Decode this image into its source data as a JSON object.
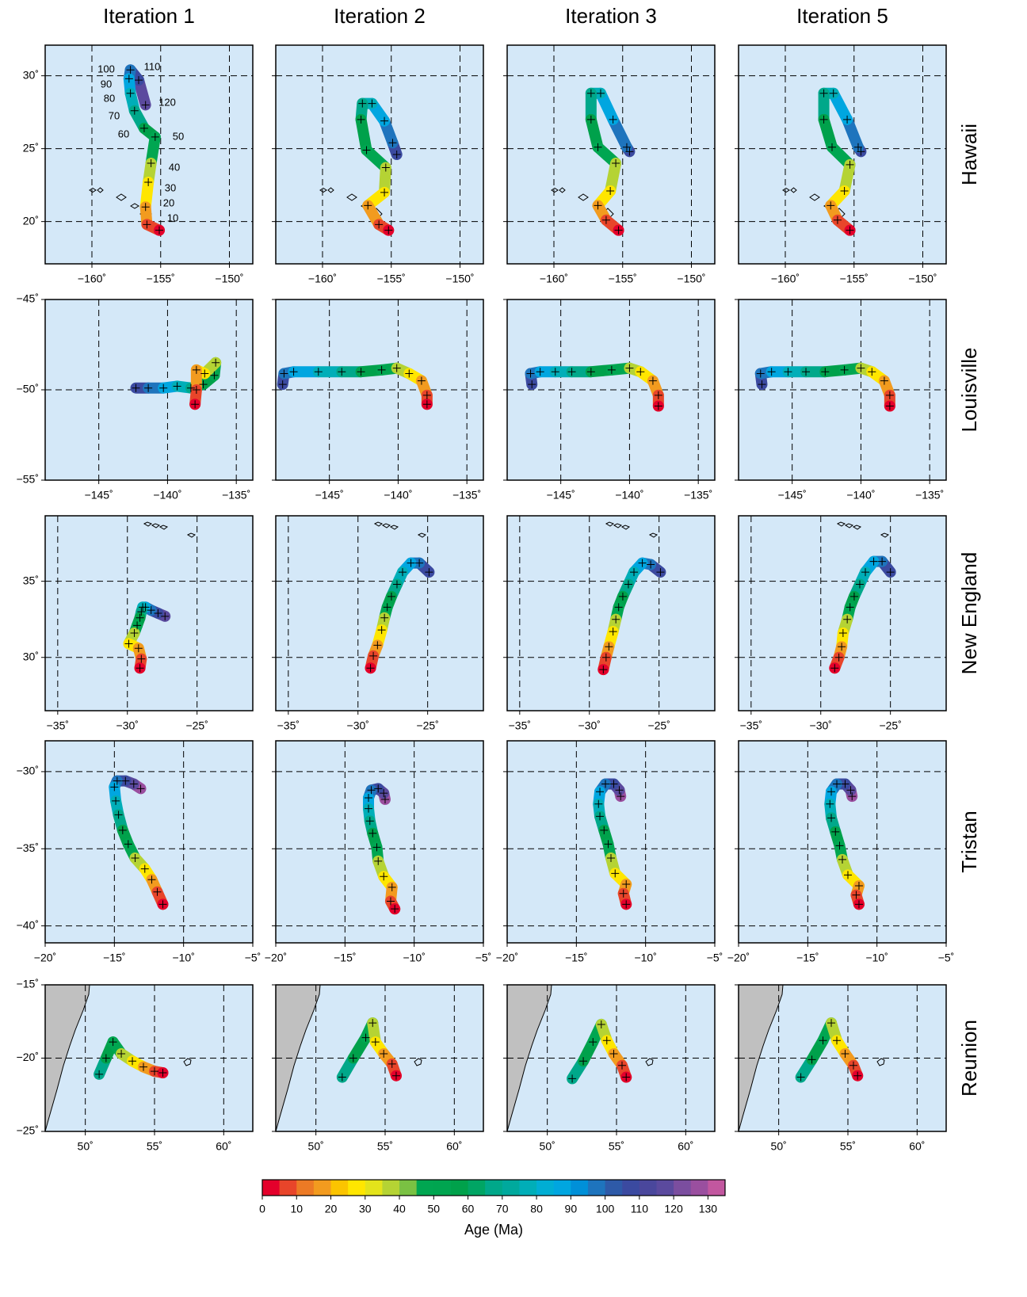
{
  "columns": [
    "Iteration 1",
    "Iteration 2",
    "Iteration 3",
    "Iteration 5"
  ],
  "rows": [
    {
      "name": "Hawaii",
      "xlim": [
        -163.4,
        -148.3
      ],
      "ylim": [
        17.1,
        32.1
      ],
      "xticks": [
        {
          "value": -160,
          "label": "−160˚"
        },
        {
          "value": -155,
          "label": "−155˚"
        },
        {
          "value": -150,
          "label": "−150˚"
        }
      ],
      "yticks": [
        {
          "value": 20,
          "label": "20˚"
        },
        {
          "value": 25,
          "label": "25˚"
        },
        {
          "value": 30,
          "label": "30˚"
        }
      ],
      "age_labels": [
        10,
        20,
        30,
        40,
        50,
        60,
        70,
        80,
        90,
        100,
        110,
        120
      ],
      "tracks": [
        {
          "ages": [
            0,
            10,
            20,
            30,
            40,
            50,
            60,
            70,
            80,
            90,
            100,
            110,
            120
          ],
          "lon": [
            -155.1,
            -156.0,
            -156.1,
            -155.9,
            -155.7,
            -155.4,
            -156.2,
            -156.9,
            -157.2,
            -157.3,
            -157.2,
            -156.6,
            -156.1
          ],
          "lat": [
            19.4,
            19.8,
            21.0,
            22.7,
            24.0,
            25.8,
            26.4,
            27.6,
            28.8,
            29.8,
            30.4,
            29.7,
            28.0
          ]
        },
        {
          "ages": [
            0,
            10,
            20,
            30,
            40,
            50,
            60,
            70,
            80,
            90,
            100,
            110
          ],
          "lon": [
            -155.2,
            -155.9,
            -156.7,
            -155.5,
            -155.4,
            -156.8,
            -157.2,
            -157.1,
            -156.4,
            -155.5,
            -154.9,
            -154.6
          ],
          "lat": [
            19.4,
            19.8,
            21.1,
            22.0,
            23.7,
            24.9,
            27.0,
            28.1,
            28.1,
            26.9,
            25.4,
            24.6
          ]
        },
        {
          "ages": [
            0,
            10,
            20,
            30,
            40,
            50,
            60,
            70,
            80,
            90,
            100,
            110
          ],
          "lon": [
            -155.3,
            -156.2,
            -156.8,
            -155.9,
            -155.5,
            -156.8,
            -157.3,
            -157.3,
            -156.6,
            -155.7,
            -154.7,
            -154.5
          ],
          "lat": [
            19.4,
            20.1,
            21.1,
            22.1,
            24.0,
            25.1,
            27.0,
            28.8,
            28.8,
            27.0,
            25.1,
            24.8
          ]
        },
        {
          "ages": [
            0,
            10,
            20,
            30,
            40,
            50,
            60,
            70,
            80,
            90,
            100,
            110
          ],
          "lon": [
            -155.3,
            -156.2,
            -156.7,
            -155.7,
            -155.3,
            -156.6,
            -157.2,
            -157.2,
            -156.5,
            -155.5,
            -154.7,
            -154.5
          ],
          "lat": [
            19.4,
            20.1,
            21.1,
            22.1,
            23.9,
            25.1,
            27.0,
            28.8,
            28.8,
            27.0,
            25.1,
            24.8
          ]
        }
      ]
    },
    {
      "name": "Louisville",
      "xlim": [
        -148.9,
        -133.8
      ],
      "ylim": [
        -55,
        -45
      ],
      "xticks": [
        {
          "value": -145,
          "label": "−145˚"
        },
        {
          "value": -140,
          "label": "−140˚"
        },
        {
          "value": -135,
          "label": "−135˚"
        }
      ],
      "yticks": [
        {
          "value": -55,
          "label": "−55˚"
        },
        {
          "value": -50,
          "label": "−50˚"
        },
        {
          "value": -45,
          "label": "−45˚"
        }
      ],
      "tracks": [
        {
          "ages": [
            0,
            10,
            20,
            30,
            40,
            50,
            60,
            70,
            80,
            90,
            100,
            110
          ],
          "lon": [
            -138.0,
            -137.9,
            -137.9,
            -137.3,
            -136.5,
            -136.6,
            -137.4,
            -138.3,
            -139.3,
            -140.3,
            -141.4,
            -142.3
          ],
          "lat": [
            -50.8,
            -50.0,
            -48.9,
            -49.1,
            -48.5,
            -49.2,
            -49.7,
            -49.9,
            -49.8,
            -49.9,
            -49.9,
            -49.9
          ]
        },
        {
          "ages": [
            0,
            10,
            20,
            30,
            40,
            50,
            60,
            70,
            80,
            90,
            100,
            110
          ],
          "lon": [
            -137.9,
            -137.9,
            -138.3,
            -139.2,
            -140.1,
            -141.2,
            -142.7,
            -144.1,
            -145.8,
            -147.6,
            -148.3,
            -148.4
          ],
          "lat": [
            -50.8,
            -50.3,
            -49.5,
            -49.1,
            -48.8,
            -48.9,
            -49.0,
            -49.0,
            -49.0,
            -49.0,
            -49.1,
            -49.7
          ]
        },
        {
          "ages": [
            0,
            10,
            20,
            30,
            40,
            50,
            60,
            70,
            80,
            90,
            100,
            110
          ],
          "lon": [
            -137.9,
            -137.9,
            -138.3,
            -139.2,
            -140.0,
            -141.3,
            -142.8,
            -144.2,
            -145.4,
            -146.5,
            -147.2,
            -147.1
          ],
          "lat": [
            -50.9,
            -50.3,
            -49.5,
            -49.0,
            -48.8,
            -48.9,
            -49.0,
            -49.0,
            -49.0,
            -49.0,
            -49.1,
            -49.7
          ]
        },
        {
          "ages": [
            0,
            10,
            20,
            30,
            40,
            50,
            60,
            70,
            80,
            90,
            100,
            110
          ],
          "lon": [
            -137.9,
            -137.9,
            -138.3,
            -139.2,
            -140.0,
            -141.2,
            -142.6,
            -144.0,
            -145.3,
            -146.5,
            -147.3,
            -147.2
          ],
          "lat": [
            -50.9,
            -50.3,
            -49.5,
            -49.0,
            -48.8,
            -48.9,
            -49.0,
            -49.0,
            -49.0,
            -49.0,
            -49.1,
            -49.7
          ]
        }
      ]
    },
    {
      "name": "New England",
      "xlim": [
        -35.9,
        -21.0
      ],
      "ylim": [
        26.5,
        39.3
      ],
      "xticks": [
        {
          "value": -35,
          "label": "−35˚"
        },
        {
          "value": -30,
          "label": "−30˚"
        },
        {
          "value": -25,
          "label": "−25˚"
        }
      ],
      "yticks": [
        {
          "value": 30,
          "label": "30˚"
        },
        {
          "value": 35,
          "label": "35˚"
        }
      ],
      "tracks": [
        {
          "ages": [
            0,
            10,
            20,
            30,
            40,
            50,
            60,
            70,
            80,
            90,
            100,
            110,
            120
          ],
          "lon": [
            -29.1,
            -29.0,
            -29.2,
            -29.9,
            -29.5,
            -29.3,
            -29.1,
            -29.0,
            -28.9,
            -28.7,
            -28.3,
            -27.8,
            -27.3
          ],
          "lat": [
            29.3,
            29.9,
            30.6,
            30.9,
            31.6,
            32.1,
            32.6,
            33.0,
            33.3,
            33.3,
            33.1,
            32.9,
            32.7
          ]
        },
        {
          "ages": [
            0,
            10,
            20,
            30,
            40,
            50,
            60,
            70,
            80,
            90,
            100,
            110
          ],
          "lon": [
            -29.1,
            -28.9,
            -28.6,
            -28.3,
            -28.1,
            -27.9,
            -27.6,
            -27.2,
            -26.8,
            -26.2,
            -25.6,
            -24.9
          ],
          "lat": [
            29.3,
            30.1,
            30.8,
            31.8,
            32.6,
            33.3,
            34.0,
            34.8,
            35.6,
            36.2,
            36.2,
            35.6
          ]
        },
        {
          "ages": [
            0,
            10,
            20,
            30,
            40,
            50,
            60,
            70,
            80,
            90,
            100,
            110
          ],
          "lon": [
            -29.0,
            -28.8,
            -28.6,
            -28.3,
            -28.1,
            -27.9,
            -27.6,
            -27.2,
            -26.8,
            -26.2,
            -25.6,
            -24.9
          ],
          "lat": [
            29.2,
            30.0,
            30.7,
            31.7,
            32.5,
            33.3,
            34.0,
            34.8,
            35.6,
            36.2,
            36.1,
            35.6
          ]
        },
        {
          "ages": [
            0,
            10,
            20,
            30,
            40,
            50,
            60,
            70,
            80,
            90,
            100,
            110
          ],
          "lon": [
            -29.0,
            -28.7,
            -28.5,
            -28.4,
            -28.1,
            -27.9,
            -27.6,
            -27.2,
            -26.8,
            -26.2,
            -25.6,
            -25.0
          ],
          "lat": [
            29.3,
            30.0,
            30.7,
            31.6,
            32.5,
            33.3,
            34.0,
            34.8,
            35.6,
            36.3,
            36.3,
            35.6
          ]
        }
      ]
    },
    {
      "name": "Tristan",
      "xlim": [
        -20,
        -5
      ],
      "ylim": [
        -41.1,
        -28.0
      ],
      "xticks": [
        {
          "value": -20,
          "label": "−20˚"
        },
        {
          "value": -15,
          "label": "−15˚"
        },
        {
          "value": -10,
          "label": "−10˚"
        },
        {
          "value": -5,
          "label": "−5˚"
        }
      ],
      "yticks": [
        {
          "value": -40,
          "label": "−40˚"
        },
        {
          "value": -35,
          "label": "−35˚"
        },
        {
          "value": -30,
          "label": "−30˚"
        }
      ],
      "tracks": [
        {
          "ages": [
            0,
            10,
            20,
            30,
            40,
            50,
            60,
            70,
            80,
            90,
            100,
            110,
            120,
            130
          ],
          "lon": [
            -11.5,
            -11.9,
            -12.3,
            -12.8,
            -13.5,
            -14.0,
            -14.4,
            -14.7,
            -14.9,
            -15.0,
            -14.8,
            -14.2,
            -13.6,
            -13.1
          ],
          "lat": [
            -38.6,
            -37.8,
            -37.0,
            -36.3,
            -35.6,
            -34.7,
            -33.8,
            -32.8,
            -31.9,
            -31.0,
            -30.6,
            -30.6,
            -30.8,
            -31.1
          ]
        },
        {
          "ages": [
            0,
            10,
            20,
            30,
            40,
            50,
            60,
            70,
            80,
            90,
            100,
            110,
            120,
            130
          ],
          "lon": [
            -11.4,
            -11.7,
            -11.6,
            -12.2,
            -12.6,
            -12.7,
            -13.0,
            -13.2,
            -13.3,
            -13.3,
            -13.1,
            -12.6,
            -12.2,
            -12.1
          ],
          "lat": [
            -38.9,
            -38.4,
            -37.5,
            -36.8,
            -35.8,
            -34.9,
            -34.0,
            -33.2,
            -32.4,
            -31.7,
            -31.2,
            -31.1,
            -31.4,
            -31.8
          ]
        },
        {
          "ages": [
            0,
            10,
            20,
            30,
            40,
            50,
            60,
            70,
            80,
            90,
            100,
            110,
            120,
            130
          ],
          "lon": [
            -11.4,
            -11.6,
            -11.4,
            -12.2,
            -12.5,
            -12.7,
            -13.0,
            -13.3,
            -13.4,
            -13.3,
            -12.9,
            -12.3,
            -11.9,
            -11.8
          ],
          "lat": [
            -38.6,
            -37.9,
            -37.3,
            -36.6,
            -35.6,
            -34.7,
            -33.8,
            -32.9,
            -32.1,
            -31.3,
            -30.8,
            -30.8,
            -31.2,
            -31.6
          ]
        },
        {
          "ages": [
            0,
            10,
            20,
            30,
            40,
            50,
            60,
            70,
            80,
            90,
            100,
            110,
            120,
            130
          ],
          "lon": [
            -11.3,
            -11.5,
            -11.3,
            -12.1,
            -12.5,
            -12.7,
            -13.0,
            -13.3,
            -13.4,
            -13.3,
            -12.9,
            -12.3,
            -11.9,
            -11.8
          ],
          "lat": [
            -38.6,
            -38.0,
            -37.4,
            -36.7,
            -35.7,
            -34.8,
            -33.9,
            -33.0,
            -32.1,
            -31.3,
            -30.8,
            -30.8,
            -31.2,
            -31.6
          ]
        }
      ]
    },
    {
      "name": "Reunion",
      "xlim": [
        47.1,
        62.1
      ],
      "ylim": [
        -25,
        -15
      ],
      "xticks": [
        {
          "value": 50,
          "label": "50˚"
        },
        {
          "value": 55,
          "label": "55˚"
        },
        {
          "value": 60,
          "label": "60˚"
        }
      ],
      "yticks": [
        {
          "value": -25,
          "label": "−25˚"
        },
        {
          "value": -20,
          "label": "−20˚"
        },
        {
          "value": -15,
          "label": "−15˚"
        }
      ],
      "tracks": [
        {
          "ages": [
            0,
            10,
            20,
            30,
            40,
            50,
            60,
            70
          ],
          "lon": [
            55.6,
            55.0,
            54.2,
            53.4,
            52.6,
            52.0,
            51.5,
            51.0
          ],
          "lat": [
            -21.0,
            -20.9,
            -20.6,
            -20.2,
            -19.7,
            -18.9,
            -20.0,
            -21.1
          ]
        },
        {
          "ages": [
            0,
            10,
            20,
            30,
            40,
            50,
            60,
            70
          ],
          "lon": [
            55.8,
            55.5,
            54.9,
            54.3,
            54.1,
            53.6,
            52.7,
            51.9
          ],
          "lat": [
            -21.2,
            -20.4,
            -19.7,
            -18.9,
            -17.6,
            -18.6,
            -20.0,
            -21.3
          ]
        },
        {
          "ages": [
            0,
            10,
            20,
            30,
            40,
            50,
            60,
            70
          ],
          "lon": [
            55.7,
            55.4,
            54.8,
            54.3,
            53.9,
            53.3,
            52.6,
            51.8
          ],
          "lat": [
            -21.3,
            -20.5,
            -19.7,
            -18.8,
            -17.7,
            -18.9,
            -20.2,
            -21.4
          ]
        },
        {
          "ages": [
            0,
            10,
            20,
            30,
            40,
            50,
            60,
            70
          ],
          "lon": [
            55.7,
            55.4,
            54.8,
            54.2,
            53.8,
            53.2,
            52.4,
            51.6
          ],
          "lat": [
            -21.2,
            -20.5,
            -19.7,
            -18.8,
            -17.6,
            -18.8,
            -20.1,
            -21.3
          ]
        }
      ]
    }
  ],
  "colorbar": {
    "label": "Age (Ma)",
    "lim": [
      0,
      135
    ],
    "ticks": [
      0,
      10,
      20,
      30,
      40,
      50,
      60,
      70,
      80,
      90,
      100,
      110,
      120,
      130
    ],
    "colors": [
      "#e4002b",
      "#e8452a",
      "#ec7a25",
      "#f29b1f",
      "#fbc400",
      "#ffe600",
      "#e3e31b",
      "#b5d334",
      "#7ac143",
      "#00a651",
      "#00a550",
      "#00a14b",
      "#00a564",
      "#00a88a",
      "#00a99d",
      "#00aeb8",
      "#00aed4",
      "#00a6e0",
      "#0090d8",
      "#1e74bd",
      "#2e5aa8",
      "#3b4aa0",
      "#4a479c",
      "#5b4a9e",
      "#7b4e9f",
      "#9a4f9f",
      "#c2579f"
    ]
  }
}
